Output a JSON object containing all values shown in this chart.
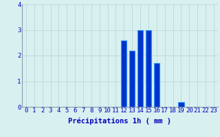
{
  "categories": [
    0,
    1,
    2,
    3,
    4,
    5,
    6,
    7,
    8,
    9,
    10,
    11,
    12,
    13,
    14,
    15,
    16,
    17,
    18,
    19,
    20,
    21,
    22,
    23
  ],
  "values": [
    0,
    0,
    0,
    0,
    0,
    0,
    0,
    0,
    0,
    0,
    0,
    0,
    2.6,
    2.2,
    3.0,
    3.0,
    1.7,
    0,
    0,
    0.2,
    0,
    0,
    0,
    0
  ],
  "bar_color": "#0033cc",
  "bar_edge_color": "#3399ff",
  "bar_edge_width": 0.8,
  "background_color": "#d8f0f0",
  "grid_color": "#b8d8d8",
  "text_color": "#0000bb",
  "xlabel": "Précipitations 1h ( mm )",
  "ylim": [
    0,
    4
  ],
  "yticks": [
    0,
    1,
    2,
    3,
    4
  ],
  "xlim": [
    -0.5,
    23.5
  ],
  "xlabel_fontsize": 7.5,
  "tick_fontsize": 6.5,
  "bar_width": 0.7
}
